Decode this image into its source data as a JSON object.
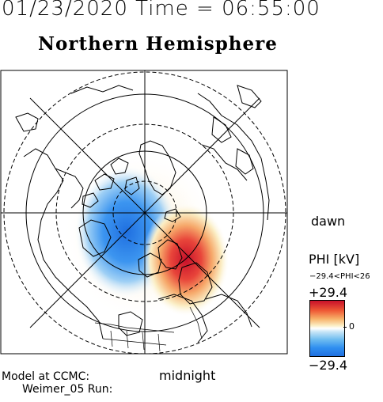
{
  "header": {
    "date_time": "01/23/2020 Time = 06:55:00",
    "hemisphere": "Northern Hemisphere"
  },
  "map": {
    "projection": "polar-stereographic",
    "pole": "north-magnetic",
    "orientation_labels": {
      "dawn": "dawn",
      "midnight": "midnight"
    },
    "features": [
      "coastlines",
      "country-borders",
      "latitude-circles",
      "meridian-lines"
    ],
    "potential_cells": [
      {
        "sign": "negative",
        "color": "#2f8ff0",
        "location": "dusk-side, left of pole"
      },
      {
        "sign": "positive",
        "color": "#d2202c",
        "location": "dawn/midnight sector, lower-right of pole"
      }
    ]
  },
  "colorbar": {
    "title": "PHI [kV]",
    "range_text": "−29.4<PHI<26",
    "max_label": "+29.4",
    "zero_label": "0",
    "min_label": "−29.4",
    "max_color": "#c8102a",
    "min_color": "#1f6fe0"
  },
  "footer": {
    "model_line": "Model at CCMC:",
    "run_line": "Weimer_05 Run:"
  }
}
